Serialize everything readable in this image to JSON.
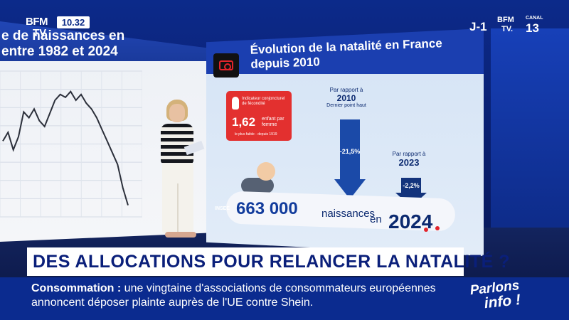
{
  "overlay": {
    "logo_line1": "BFM",
    "logo_line2": "TV",
    "clock": "10.32",
    "countdown": "J-1",
    "channel_brand": "BFM",
    "channel_tv": "TV.",
    "channel_canal": "CANAL",
    "channel_number": "13",
    "headline": "DES ALLOCATIONS POUR RELANCER LA NATALITÉ ?",
    "ticker_keyword": "Consommation :",
    "ticker_text": "une vingtaine d'associations de consommateurs européennes annoncent déposer plainte auprès de l'UE contre Shein.",
    "program_line1": "Parlons",
    "program_line2": "info !"
  },
  "left_screen": {
    "title_line1": "e de naissances en",
    "title_line2": "entre 1982 et 2024",
    "line_values": [
      0.52,
      0.58,
      0.46,
      0.55,
      0.72,
      0.68,
      0.74,
      0.66,
      0.62,
      0.71,
      0.8,
      0.84,
      0.82,
      0.86,
      0.8,
      0.84,
      0.78,
      0.74,
      0.68,
      0.6,
      0.52,
      0.44,
      0.36,
      0.2,
      0.08
    ]
  },
  "infographic": {
    "title_line1": "Évolution de la natalité en France",
    "title_line2": "depuis 2010",
    "card_label": "Indicateur conjoncturel de fécondité",
    "card_value": "1,62",
    "card_unit": "enfant par femme",
    "card_note": "le plus faible · depuis 1919",
    "cmp1_head": "Par rapport à",
    "cmp1_year": "2010",
    "cmp1_sub": "Dernier point haut",
    "cmp1_pct": "-21,5%",
    "cmp2_head": "Par rapport à",
    "cmp2_year": "2023",
    "cmp2_pct": "-2,2%",
    "source": "INSEE",
    "births_value": "663 000",
    "births_label": "naissances",
    "births_en": "en",
    "births_year": "2024"
  },
  "colors": {
    "brand_blue": "#0b2b8f",
    "accent_red": "#e3242b"
  }
}
